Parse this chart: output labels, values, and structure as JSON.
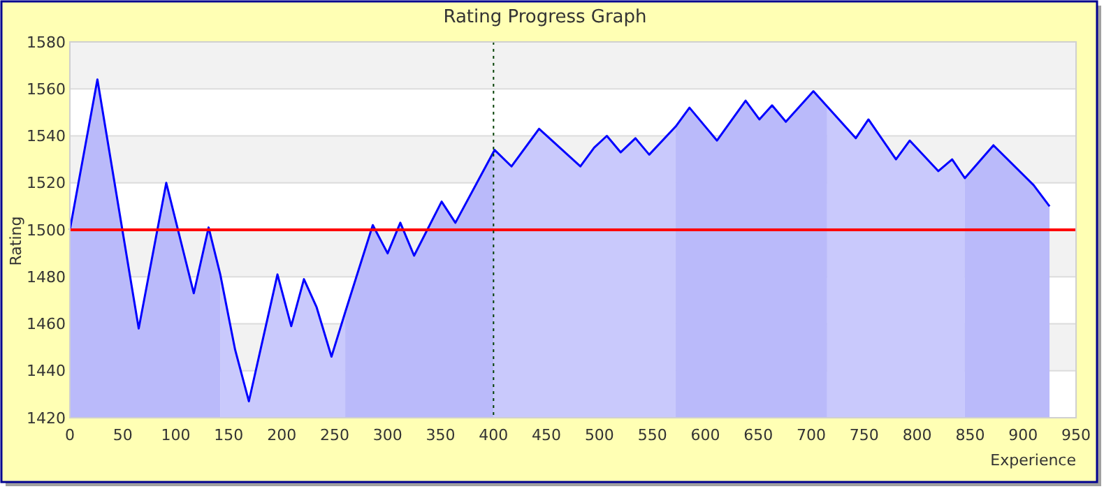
{
  "chart_data": {
    "type": "area",
    "title": "Rating Progress Graph",
    "xlabel": "Experience",
    "ylabel": "Rating",
    "series": [
      {
        "color": "#0000ff",
        "x": [
          0,
          26,
          65,
          91,
          117,
          131,
          142,
          156,
          169,
          196,
          209,
          221,
          233,
          247,
          260,
          286,
          300,
          312,
          325,
          351,
          364,
          401,
          417,
          443,
          482,
          495,
          507,
          520,
          534,
          547,
          572,
          585,
          611,
          638,
          651,
          663,
          676,
          702,
          742,
          754,
          780,
          793,
          820,
          833,
          845,
          872,
          910,
          925
        ],
        "values": [
          1500,
          1564,
          1458,
          1520,
          1473,
          1501,
          1481,
          1449,
          1427,
          1481,
          1459,
          1479,
          1467,
          1446,
          1465,
          1502,
          1490,
          1503,
          1489,
          1512,
          1503,
          1534,
          1527,
          1543,
          1527,
          1535,
          1540,
          1533,
          1539,
          1532,
          1544,
          1552,
          1538,
          1555,
          1547,
          1553,
          1546,
          1559,
          1539,
          1547,
          1530,
          1538,
          1525,
          1530,
          1522,
          1536,
          1519,
          1510
        ]
      }
    ],
    "xlim": [
      0,
      950
    ],
    "xticks": [
      0,
      50,
      100,
      150,
      200,
      250,
      300,
      350,
      400,
      450,
      500,
      550,
      600,
      650,
      700,
      750,
      800,
      850,
      900,
      950
    ],
    "ylim": [
      1420,
      1580
    ],
    "yticks": [
      1420,
      1440,
      1460,
      1480,
      1500,
      1520,
      1540,
      1560,
      1580
    ],
    "grid": "y",
    "marker": "none",
    "line_style": "solid",
    "ref_lines": [
      {
        "axis": "y",
        "value": 1500,
        "color": "#ff0000",
        "line_style": "solid"
      },
      {
        "axis": "x",
        "value": 400,
        "color": "#004000",
        "line_style": "dotted"
      }
    ],
    "bands": [
      {
        "axis": "x",
        "from": 0,
        "to": 142,
        "color": "#d0d0fa"
      },
      {
        "axis": "x",
        "from": 142,
        "to": 260,
        "color": "#e0e0fc"
      },
      {
        "axis": "x",
        "from": 260,
        "to": 400,
        "color": "#d0d0fa"
      },
      {
        "axis": "x",
        "from": 400,
        "to": 572,
        "color": "#e0e0fc"
      },
      {
        "axis": "x",
        "from": 572,
        "to": 715,
        "color": "#d0d0fa"
      },
      {
        "axis": "x",
        "from": 715,
        "to": 845,
        "color": "#e0e0fc"
      },
      {
        "axis": "x",
        "from": 845,
        "to": 925,
        "color": "#d0d0fa"
      }
    ]
  }
}
